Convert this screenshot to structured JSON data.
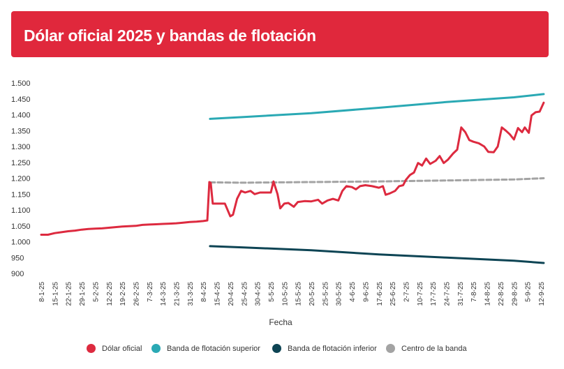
{
  "title": "Dólar oficial 2025 y bandas de flotación",
  "colors": {
    "header_bg": "#e0283c",
    "dolar": "#dd2a3f",
    "superior": "#2aa9b4",
    "inferior": "#0d4454",
    "centro": "#a3a3a3"
  },
  "legend": [
    {
      "label": "Dólar oficial",
      "color": "#dd2a3f"
    },
    {
      "label": "Banda de flotación superior",
      "color": "#2aa9b4"
    },
    {
      "label": "Banda de flotación inferior",
      "color": "#0d4454"
    },
    {
      "label": "Centro de la banda",
      "color": "#a3a3a3"
    }
  ],
  "chart_data": {
    "type": "line",
    "title": "Dólar oficial 2025 y bandas de flotación",
    "xlabel": "Fecha",
    "ylabel": "",
    "ylim": [
      900,
      1500
    ],
    "y_ticks": [
      "1.500",
      "1.450",
      "1.400",
      "1.350",
      "1.300",
      "1.250",
      "1.200",
      "1.150",
      "1.100",
      "1.050",
      "1.000",
      "950",
      "900"
    ],
    "x_ticks": [
      "8-1-25",
      "15-1-25",
      "22-1-25",
      "29-1-25",
      "5-2-25",
      "12-2-25",
      "19-2-25",
      "26-2-25",
      "7-3-25",
      "14-3-25",
      "21-3-25",
      "31-3-25",
      "8-4-25",
      "15-4-25",
      "20-4-25",
      "25-4-25",
      "30-4-25",
      "5-5-25",
      "10-5-25",
      "15-5-25",
      "20-5-25",
      "25-5-25",
      "30-5-25",
      "4-6-25",
      "9-6-25",
      "17-6-25",
      "25-6-25",
      "2-7-25",
      "10-7-25",
      "17-7-25",
      "24-7-25",
      "31-7-25",
      "7-8-25",
      "14-8-25",
      "22-8-25",
      "29-8-25",
      "5-9-25",
      "12-9-25"
    ],
    "grid": false,
    "legend_position": "bottom",
    "series": [
      {
        "name": "Dólar oficial",
        "color": "#dd2a3f",
        "dashed": false,
        "values": [
          [
            0,
            1022
          ],
          [
            0.5,
            1022
          ],
          [
            1,
            1027
          ],
          [
            1.5,
            1030
          ],
          [
            2,
            1033
          ],
          [
            2.5,
            1035
          ],
          [
            3,
            1038
          ],
          [
            3.5,
            1040
          ],
          [
            4,
            1041
          ],
          [
            4.5,
            1042
          ],
          [
            5,
            1044
          ],
          [
            5.5,
            1046
          ],
          [
            6,
            1048
          ],
          [
            6.5,
            1049
          ],
          [
            7,
            1050
          ],
          [
            7.5,
            1053
          ],
          [
            8,
            1054
          ],
          [
            8.5,
            1055
          ],
          [
            9,
            1056
          ],
          [
            9.5,
            1057
          ],
          [
            10,
            1058
          ],
          [
            10.5,
            1060
          ],
          [
            11,
            1062
          ],
          [
            11.5,
            1063
          ],
          [
            12,
            1065
          ],
          [
            12.3,
            1067
          ],
          [
            12.45,
            1188
          ],
          [
            12.55,
            1185
          ],
          [
            12.7,
            1120
          ],
          [
            13.2,
            1120
          ],
          [
            13.6,
            1120
          ],
          [
            14,
            1080
          ],
          [
            14.2,
            1085
          ],
          [
            14.5,
            1135
          ],
          [
            14.8,
            1160
          ],
          [
            15.1,
            1155
          ],
          [
            15.5,
            1160
          ],
          [
            15.8,
            1150
          ],
          [
            16.2,
            1155
          ],
          [
            16.5,
            1155
          ],
          [
            17,
            1155
          ],
          [
            17.2,
            1190
          ],
          [
            17.5,
            1150
          ],
          [
            17.7,
            1105
          ],
          [
            18,
            1120
          ],
          [
            18.3,
            1122
          ],
          [
            18.7,
            1110
          ],
          [
            19,
            1125
          ],
          [
            19.5,
            1128
          ],
          [
            20,
            1127
          ],
          [
            20.5,
            1132
          ],
          [
            20.8,
            1120
          ],
          [
            21.2,
            1130
          ],
          [
            21.6,
            1135
          ],
          [
            22,
            1130
          ],
          [
            22.3,
            1160
          ],
          [
            22.6,
            1175
          ],
          [
            23,
            1172
          ],
          [
            23.3,
            1165
          ],
          [
            23.6,
            1175
          ],
          [
            24,
            1178
          ],
          [
            24.5,
            1175
          ],
          [
            25,
            1170
          ],
          [
            25.3,
            1175
          ],
          [
            25.5,
            1148
          ],
          [
            25.8,
            1152
          ],
          [
            26.2,
            1160
          ],
          [
            26.5,
            1175
          ],
          [
            26.8,
            1178
          ],
          [
            27,
            1195
          ],
          [
            27.3,
            1210
          ],
          [
            27.6,
            1218
          ],
          [
            27.9,
            1248
          ],
          [
            28.2,
            1240
          ],
          [
            28.5,
            1262
          ],
          [
            28.8,
            1245
          ],
          [
            29.2,
            1255
          ],
          [
            29.5,
            1270
          ],
          [
            29.8,
            1248
          ],
          [
            30.1,
            1258
          ],
          [
            30.5,
            1278
          ],
          [
            30.8,
            1290
          ],
          [
            31.1,
            1360
          ],
          [
            31.4,
            1345
          ],
          [
            31.7,
            1320
          ],
          [
            32,
            1315
          ],
          [
            32.4,
            1310
          ],
          [
            32.8,
            1300
          ],
          [
            33.1,
            1283
          ],
          [
            33.5,
            1282
          ],
          [
            33.8,
            1300
          ],
          [
            34.1,
            1360
          ],
          [
            34.4,
            1350
          ],
          [
            34.7,
            1338
          ],
          [
            35,
            1322
          ],
          [
            35.3,
            1358
          ],
          [
            35.6,
            1345
          ],
          [
            35.8,
            1360
          ],
          [
            36.1,
            1343
          ],
          [
            36.3,
            1398
          ],
          [
            36.6,
            1408
          ],
          [
            36.9,
            1410
          ],
          [
            37.2,
            1438
          ]
        ]
      },
      {
        "name": "Banda de flotación superior",
        "color": "#2aa9b4",
        "dashed": false,
        "values": [
          [
            12.5,
            1387
          ],
          [
            15,
            1393
          ],
          [
            20,
            1405
          ],
          [
            25,
            1422
          ],
          [
            30,
            1440
          ],
          [
            35,
            1455
          ],
          [
            37.2,
            1465
          ]
        ]
      },
      {
        "name": "Banda de flotación inferior",
        "color": "#0d4454",
        "dashed": false,
        "values": [
          [
            12.5,
            986
          ],
          [
            15,
            982
          ],
          [
            20,
            973
          ],
          [
            25,
            960
          ],
          [
            30,
            950
          ],
          [
            35,
            940
          ],
          [
            37.2,
            933
          ]
        ]
      },
      {
        "name": "Centro de la banda",
        "color": "#a3a3a3",
        "dashed": true,
        "values": [
          [
            12.5,
            1187
          ],
          [
            15,
            1186
          ],
          [
            20,
            1188
          ],
          [
            25,
            1190
          ],
          [
            30,
            1193
          ],
          [
            35,
            1196
          ],
          [
            37.2,
            1200
          ]
        ]
      }
    ]
  }
}
